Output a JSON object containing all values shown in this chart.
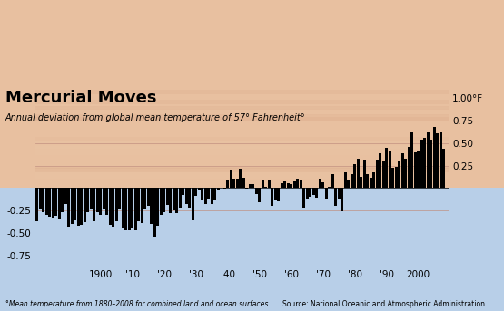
{
  "title": "Mercurial Moves",
  "subtitle": "Annual deviation from global mean temperature of 57° Fahrenheit°",
  "footnote": "°Mean temperature from 1880–2008 for combined land and ocean surfaces",
  "source": "Source: National Oceanic and Atmospheric Administration",
  "years": [
    1880,
    1881,
    1882,
    1883,
    1884,
    1885,
    1886,
    1887,
    1888,
    1889,
    1890,
    1891,
    1892,
    1893,
    1894,
    1895,
    1896,
    1897,
    1898,
    1899,
    1900,
    1901,
    1902,
    1903,
    1904,
    1905,
    1906,
    1907,
    1908,
    1909,
    1910,
    1911,
    1912,
    1913,
    1914,
    1915,
    1916,
    1917,
    1918,
    1919,
    1920,
    1921,
    1922,
    1923,
    1924,
    1925,
    1926,
    1927,
    1928,
    1929,
    1930,
    1931,
    1932,
    1933,
    1934,
    1935,
    1936,
    1937,
    1938,
    1939,
    1940,
    1941,
    1942,
    1943,
    1944,
    1945,
    1946,
    1947,
    1948,
    1949,
    1950,
    1951,
    1952,
    1953,
    1954,
    1955,
    1956,
    1957,
    1958,
    1959,
    1960,
    1961,
    1962,
    1963,
    1964,
    1965,
    1966,
    1967,
    1968,
    1969,
    1970,
    1971,
    1972,
    1973,
    1974,
    1975,
    1976,
    1977,
    1978,
    1979,
    1980,
    1981,
    1982,
    1983,
    1984,
    1985,
    1986,
    1987,
    1988,
    1989,
    1990,
    1991,
    1992,
    1993,
    1994,
    1995,
    1996,
    1997,
    1998,
    1999,
    2000,
    2001,
    2002,
    2003,
    2004,
    2005,
    2006,
    2007,
    2008
  ],
  "values": [
    -0.37,
    -0.23,
    -0.27,
    -0.3,
    -0.32,
    -0.33,
    -0.31,
    -0.35,
    -0.27,
    -0.18,
    -0.43,
    -0.4,
    -0.36,
    -0.42,
    -0.41,
    -0.38,
    -0.27,
    -0.23,
    -0.37,
    -0.27,
    -0.3,
    -0.23,
    -0.3,
    -0.41,
    -0.43,
    -0.37,
    -0.24,
    -0.44,
    -0.47,
    -0.47,
    -0.44,
    -0.47,
    -0.37,
    -0.39,
    -0.23,
    -0.2,
    -0.4,
    -0.54,
    -0.42,
    -0.3,
    -0.27,
    -0.19,
    -0.28,
    -0.25,
    -0.28,
    -0.22,
    -0.08,
    -0.18,
    -0.22,
    -0.36,
    -0.09,
    -0.03,
    -0.14,
    -0.18,
    -0.13,
    -0.18,
    -0.14,
    -0.02,
    -0.0,
    -0.01,
    0.09,
    0.2,
    0.1,
    0.11,
    0.22,
    0.12,
    -0.01,
    0.04,
    0.04,
    -0.07,
    -0.16,
    0.08,
    0.01,
    0.08,
    -0.2,
    -0.14,
    -0.15,
    0.05,
    0.07,
    0.05,
    0.04,
    0.07,
    0.1,
    0.09,
    -0.22,
    -0.13,
    -0.1,
    -0.08,
    -0.11,
    0.1,
    0.06,
    -0.13,
    0.01,
    0.16,
    -0.2,
    -0.13,
    -0.26,
    0.18,
    0.08,
    0.16,
    0.27,
    0.33,
    0.13,
    0.31,
    0.16,
    0.12,
    0.18,
    0.32,
    0.39,
    0.3,
    0.45,
    0.41,
    0.23,
    0.24,
    0.3,
    0.39,
    0.33,
    0.46,
    0.62,
    0.4,
    0.42,
    0.54,
    0.56,
    0.62,
    0.54,
    0.68,
    0.61,
    0.62,
    0.44
  ],
  "bar_color": "#000000",
  "top_bg": "#e8c0a0",
  "bottom_bg": "#b8cfe8",
  "grid_color": "#c09080",
  "yticks_right": [
    0.25,
    0.5,
    0.75,
    1.0
  ],
  "ytick_labels_right": [
    "0.25",
    "0.50",
    "0.75",
    "1.00°F"
  ],
  "yticks_left": [
    -0.75,
    -0.5,
    -0.25
  ],
  "ytick_labels_left": [
    "-0.75",
    "-0.50",
    "-0.25"
  ],
  "xtick_years": [
    1900,
    1910,
    1920,
    1930,
    1940,
    1950,
    1960,
    1970,
    1980,
    1990,
    2000
  ],
  "xtick_labels": [
    "1900",
    "'10",
    "'20",
    "'30",
    "'40",
    "'50",
    "'60",
    "'70",
    "'80",
    "'90",
    "2000"
  ],
  "ylim": [
    -0.88,
    1.12
  ],
  "xlim": [
    1879.5,
    2009.5
  ],
  "figsize": [
    5.55,
    3.43
  ],
  "dpi": 100
}
